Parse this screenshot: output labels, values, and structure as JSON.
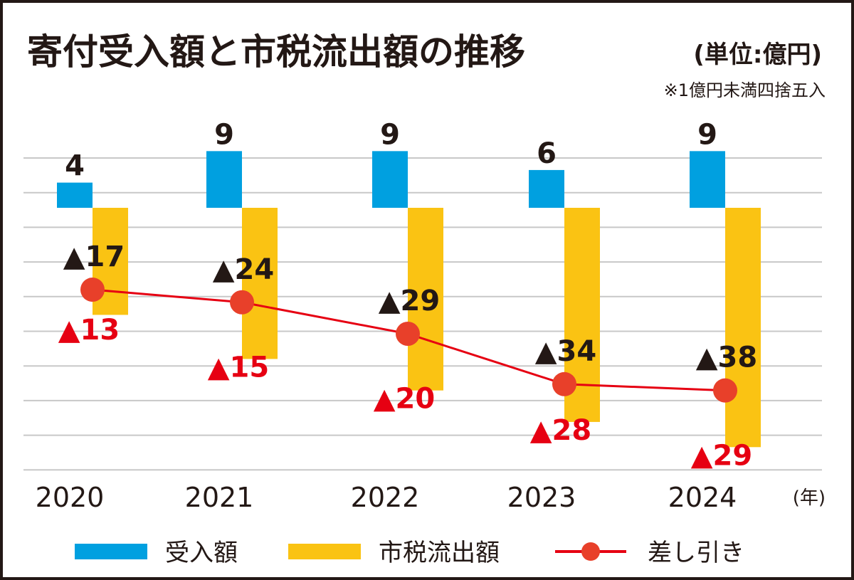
{
  "chart_data": {
    "type": "bar",
    "title": "寄付受入額と市税流出額の推移",
    "unit_note": "(単位:億円)",
    "footnote": "※1億円未満四捨五入",
    "xlabel_unit": "(年)",
    "categories": [
      "2020",
      "2021",
      "2022",
      "2023",
      "2024"
    ],
    "series": [
      {
        "name": "受入額",
        "kind": "bar",
        "color": "#00a0e0",
        "values": [
          4,
          9,
          9,
          6,
          9
        ],
        "labels": [
          "4",
          "9",
          "9",
          "6",
          "9"
        ]
      },
      {
        "name": "市税流出額",
        "kind": "bar",
        "color": "#fac313",
        "values": [
          -17,
          -24,
          -29,
          -34,
          -38
        ],
        "labels": [
          "▲17",
          "▲24",
          "▲29",
          "▲34",
          "▲38"
        ]
      },
      {
        "name": "差し引き",
        "kind": "line",
        "color": "#e60012",
        "values": [
          -13,
          -15,
          -20,
          -28,
          -29
        ],
        "labels": [
          "▲13",
          "▲15",
          "▲20",
          "▲28",
          "▲29"
        ]
      }
    ],
    "grid": true,
    "legend_position": "bottom"
  },
  "colors": {
    "frame": "#231815",
    "grid": "#c8c8c8",
    "marker": "#e8402a"
  }
}
